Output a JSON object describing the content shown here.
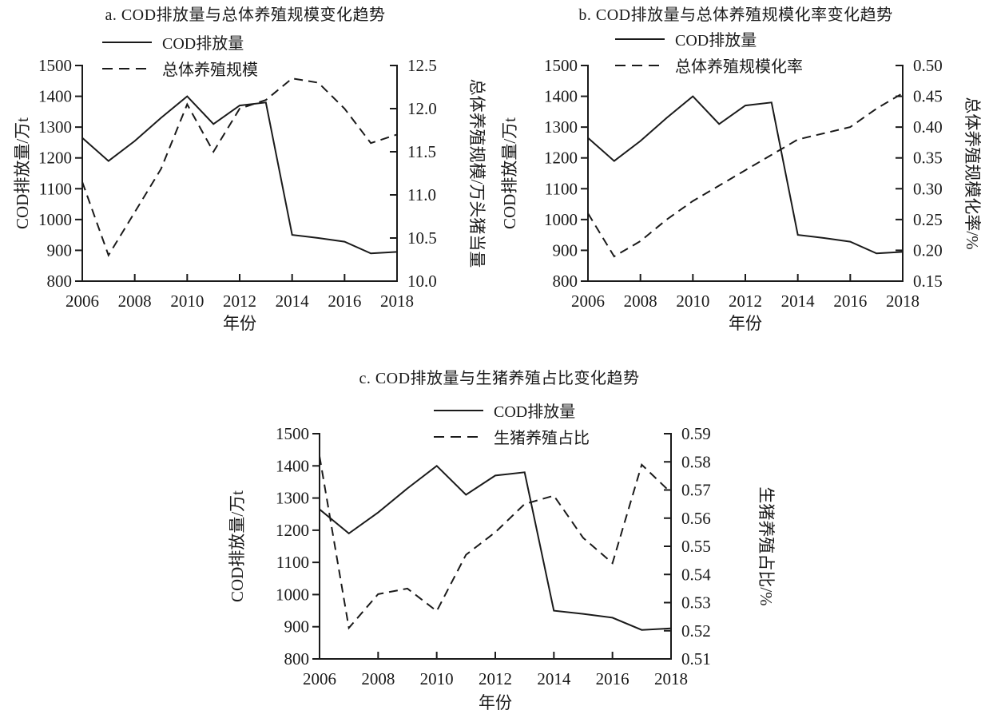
{
  "page": {
    "background": "#ffffff",
    "line_color": "#1a1a1a"
  },
  "chart_data": [
    {
      "id": "a",
      "type": "line",
      "title": "a. COD排放量与总体养殖规模变化趋势",
      "xlabel": "年份",
      "x": [
        2006,
        2007,
        2008,
        2009,
        2010,
        2011,
        2012,
        2013,
        2014,
        2015,
        2016,
        2017,
        2018
      ],
      "x_ticks": [
        "2006",
        "2008",
        "2010",
        "2012",
        "2014",
        "2016",
        "2018"
      ],
      "left_axis": {
        "label": "COD排放量/万t",
        "min": 800,
        "max": 1500,
        "ticks": [
          "800",
          "900",
          "1000",
          "1100",
          "1200",
          "1300",
          "1400",
          "1500"
        ]
      },
      "right_axis": {
        "label": "总体养殖规模/万头猪当量",
        "min": 10.0,
        "max": 12.5,
        "ticks": [
          "10.0",
          "10.5",
          "11.0",
          "11.5",
          "12.0",
          "12.5"
        ]
      },
      "legend_position": "top-left",
      "grid": false,
      "series": [
        {
          "name": "COD排放量",
          "axis": "left",
          "line": "solid",
          "values": [
            1265,
            1190,
            1255,
            1330,
            1400,
            1310,
            1370,
            1380,
            950,
            940,
            928,
            890,
            895
          ]
        },
        {
          "name": "总体养殖规模",
          "axis": "right",
          "line": "dashed",
          "values": [
            11.15,
            10.3,
            10.8,
            11.3,
            12.05,
            11.5,
            12.0,
            12.1,
            12.35,
            12.3,
            12.0,
            11.6,
            11.7
          ]
        }
      ]
    },
    {
      "id": "b",
      "type": "line",
      "title": "b. COD排放量与总体养殖规模化率变化趋势",
      "xlabel": "年份",
      "x": [
        2006,
        2007,
        2008,
        2009,
        2010,
        2011,
        2012,
        2013,
        2014,
        2015,
        2016,
        2017,
        2018
      ],
      "x_ticks": [
        "2006",
        "2008",
        "2010",
        "2012",
        "2014",
        "2016",
        "2018"
      ],
      "left_axis": {
        "label": "COD排放量/万t",
        "min": 800,
        "max": 1500,
        "ticks": [
          "800",
          "900",
          "1000",
          "1100",
          "1200",
          "1300",
          "1400",
          "1500"
        ]
      },
      "right_axis": {
        "label": "总体养殖规模化率/%",
        "min": 0.15,
        "max": 0.5,
        "ticks": [
          "0.15",
          "0.20",
          "0.25",
          "0.30",
          "0.35",
          "0.40",
          "0.45",
          "0.50"
        ]
      },
      "legend_position": "top-left",
      "grid": false,
      "series": [
        {
          "name": "COD排放量",
          "axis": "left",
          "line": "solid",
          "values": [
            1265,
            1190,
            1255,
            1330,
            1400,
            1310,
            1370,
            1380,
            950,
            940,
            928,
            890,
            895
          ]
        },
        {
          "name": "总体养殖规模化率",
          "axis": "right",
          "line": "dashed",
          "values": [
            0.26,
            0.19,
            0.215,
            0.25,
            0.28,
            0.305,
            0.33,
            0.355,
            0.38,
            0.39,
            0.4,
            0.43,
            0.455
          ]
        }
      ]
    },
    {
      "id": "c",
      "type": "line",
      "title": "c. COD排放量与生猪养殖占比变化趋势",
      "xlabel": "年份",
      "x": [
        2006,
        2007,
        2008,
        2009,
        2010,
        2011,
        2012,
        2013,
        2014,
        2015,
        2016,
        2017,
        2018
      ],
      "x_ticks": [
        "2006",
        "2008",
        "2010",
        "2012",
        "2014",
        "2016",
        "2018"
      ],
      "left_axis": {
        "label": "COD排放量/万t",
        "min": 800,
        "max": 1500,
        "ticks": [
          "800",
          "900",
          "1000",
          "1100",
          "1200",
          "1300",
          "1400",
          "1500"
        ]
      },
      "right_axis": {
        "label": "生猪养殖占比/%",
        "min": 0.51,
        "max": 0.59,
        "ticks": [
          "0.51",
          "0.52",
          "0.53",
          "0.54",
          "0.55",
          "0.56",
          "0.57",
          "0.58",
          "0.59"
        ]
      },
      "legend_position": "top-center",
      "grid": false,
      "series": [
        {
          "name": "COD排放量",
          "axis": "left",
          "line": "solid",
          "values": [
            1265,
            1190,
            1255,
            1330,
            1400,
            1310,
            1370,
            1380,
            950,
            940,
            928,
            890,
            895
          ]
        },
        {
          "name": "生猪养殖占比",
          "axis": "right",
          "line": "dashed",
          "values": [
            0.582,
            0.521,
            0.533,
            0.535,
            0.527,
            0.547,
            0.555,
            0.565,
            0.568,
            0.553,
            0.544,
            0.579,
            0.569
          ]
        }
      ]
    }
  ]
}
